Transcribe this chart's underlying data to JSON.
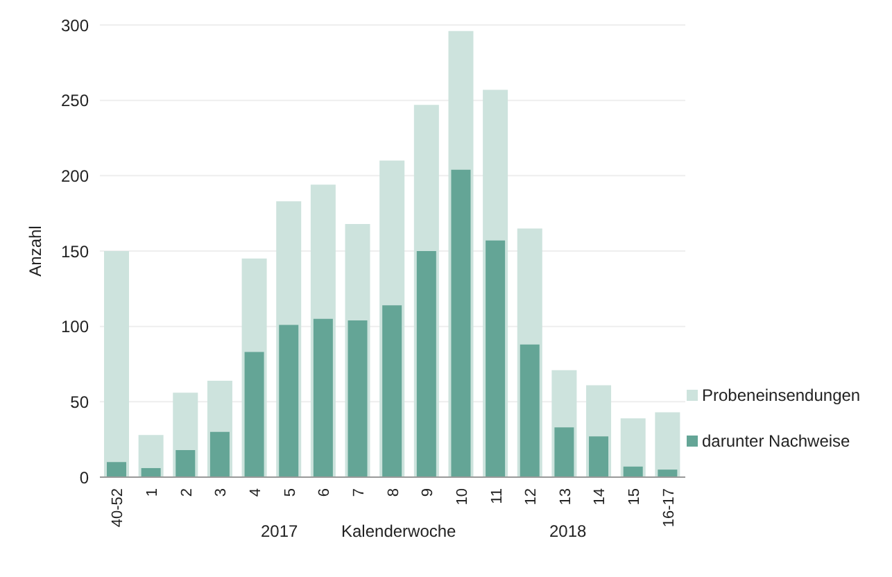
{
  "chart_data": {
    "type": "bar",
    "xlabel": "Kalenderwoche",
    "ylabel": "Anzahl",
    "categories": [
      "40-52",
      "1",
      "2",
      "3",
      "4",
      "5",
      "6",
      "7",
      "8",
      "9",
      "10",
      "11",
      "12",
      "13",
      "14",
      "15",
      "16-17"
    ],
    "series": [
      {
        "name": "Probeneinsendungen",
        "color": "#cde3dd",
        "values": [
          150,
          28,
          56,
          64,
          145,
          183,
          194,
          168,
          210,
          247,
          296,
          257,
          165,
          71,
          61,
          39,
          43
        ]
      },
      {
        "name": "darunter Nachweise",
        "color": "#64a596",
        "values": [
          10,
          6,
          18,
          30,
          83,
          101,
          105,
          104,
          114,
          150,
          204,
          157,
          88,
          33,
          27,
          7,
          5
        ]
      }
    ],
    "ylim": [
      0,
      300
    ],
    "yticks": [
      0,
      50,
      100,
      150,
      200,
      250,
      300
    ],
    "grid": "y",
    "legend": "right",
    "annotations": [
      "2017",
      "2018"
    ]
  }
}
